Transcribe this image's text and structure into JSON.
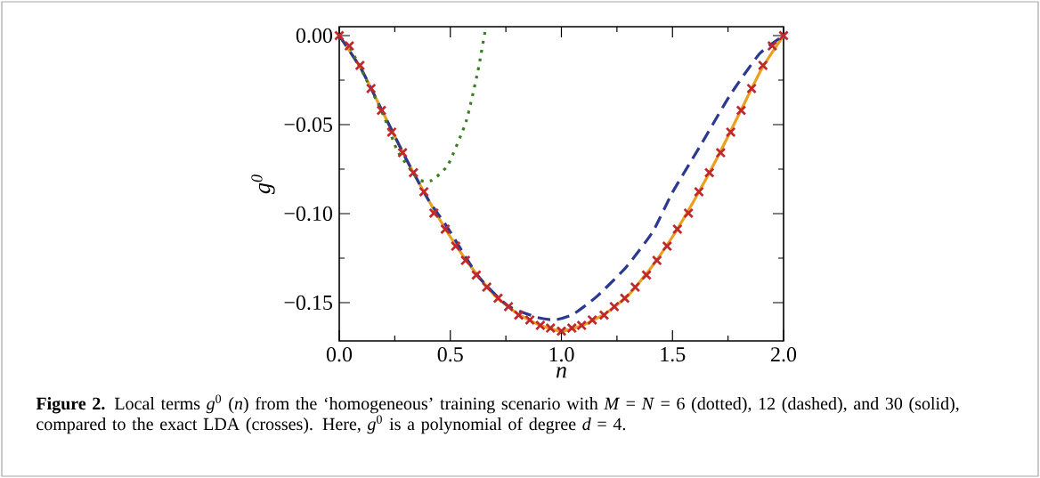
{
  "chart_data": {
    "type": "line",
    "xlabel": "n",
    "ylabel": "g$^{0}$",
    "xlim": [
      0,
      2
    ],
    "ylim": [
      -0.1715,
      0.005
    ],
    "xticks": [
      {
        "value": 0,
        "label": "0.0"
      },
      {
        "value": 0.5,
        "label": "0.5"
      },
      {
        "value": 1,
        "label": "1.0"
      },
      {
        "value": 1.5,
        "label": "1.5"
      },
      {
        "value": 2,
        "label": "2.0"
      }
    ],
    "yticks": [
      {
        "value": 0,
        "label": "0.00"
      },
      {
        "value": -0.05,
        "label": "−0.05"
      },
      {
        "value": -0.1,
        "label": "−0.10"
      },
      {
        "value": -0.15,
        "label": "−0.15"
      }
    ],
    "grid": false,
    "series": [
      {
        "color": "#e8a020",
        "line_style": "solid",
        "marker": "none",
        "x": [
          0,
          0.1,
          0.2,
          0.3,
          0.4,
          0.5,
          0.6,
          0.7,
          0.8,
          0.9,
          1.0,
          1.1,
          1.2,
          1.3,
          1.4,
          1.5,
          1.6,
          1.7,
          1.8,
          1.9,
          2.0
        ],
        "values": [
          0,
          -0.019,
          -0.044,
          -0.069,
          -0.092,
          -0.113,
          -0.131,
          -0.146,
          -0.156,
          -0.1625,
          -0.166,
          -0.1625,
          -0.156,
          -0.146,
          -0.131,
          -0.113,
          -0.092,
          -0.069,
          -0.044,
          -0.019,
          0
        ]
      },
      {
        "color": "#2b3990",
        "line_style": "dashed",
        "marker": "none",
        "x": [
          0,
          0.1,
          0.2,
          0.3,
          0.4,
          0.49,
          0.624,
          0.758,
          0.891,
          0.971,
          1.051,
          1.158,
          1.292,
          1.412,
          1.499,
          1.626,
          1.76,
          1.893,
          2.0
        ],
        "values": [
          0,
          -0.019,
          -0.044,
          -0.069,
          -0.092,
          -0.1083,
          -0.135,
          -0.1517,
          -0.1583,
          -0.1597,
          -0.1567,
          -0.1467,
          -0.13,
          -0.11,
          -0.0883,
          -0.0617,
          -0.0333,
          -0.01,
          0
        ]
      },
      {
        "color": "#3a7d22",
        "line_style": "dotted",
        "marker": "none",
        "x": [
          0.05,
          0.116,
          0.2,
          0.263,
          0.357,
          0.417,
          0.49,
          0.571,
          0.624,
          0.66
        ],
        "values": [
          -0.007,
          -0.0233,
          -0.045,
          -0.065,
          -0.0808,
          -0.0813,
          -0.0725,
          -0.0483,
          -0.02,
          0.005
        ]
      },
      {
        "type": "scatter",
        "color": "#c0282d",
        "marker": "cross",
        "x": [
          0,
          0.0454,
          0.0935,
          0.143,
          0.19,
          0.236,
          0.285,
          0.334,
          0.381,
          0.426,
          0.477,
          0.524,
          0.568,
          0.617,
          0.664,
          0.715,
          0.762,
          0.808,
          0.858,
          0.905,
          0.951,
          1.0,
          1.047,
          1.091,
          1.139,
          1.192,
          1.238,
          1.285,
          1.332,
          1.383,
          1.43,
          1.476,
          1.522,
          1.572,
          1.619,
          1.666,
          1.717,
          1.762,
          1.809,
          1.856,
          1.907,
          1.949,
          2.0
        ],
        "values": [
          0,
          -0.0058,
          -0.0167,
          -0.0297,
          -0.042,
          -0.0542,
          -0.0658,
          -0.077,
          -0.0877,
          -0.0997,
          -0.1087,
          -0.1183,
          -0.1263,
          -0.1345,
          -0.1413,
          -0.1475,
          -0.1522,
          -0.157,
          -0.1597,
          -0.1628,
          -0.1643,
          -0.166,
          -0.1643,
          -0.1628,
          -0.1597,
          -0.157,
          -0.1522,
          -0.1475,
          -0.1413,
          -0.1345,
          -0.1263,
          -0.1183,
          -0.1087,
          -0.0997,
          -0.0877,
          -0.077,
          -0.0658,
          -0.0542,
          -0.042,
          -0.0297,
          -0.0167,
          -0.0058,
          0
        ]
      }
    ],
    "annotations": [
      "**Figure 2.** Local terms *g*$^{0}$ (*n*) from the ‘homogeneous’ training scenario with *M* = *N* = 6 (dotted), 12 (dashed), and 30 (solid), compared to the exact LDA (crosses). Here, *g*$^{0}$ is a polynomial of degree *d* = 4."
    ]
  }
}
